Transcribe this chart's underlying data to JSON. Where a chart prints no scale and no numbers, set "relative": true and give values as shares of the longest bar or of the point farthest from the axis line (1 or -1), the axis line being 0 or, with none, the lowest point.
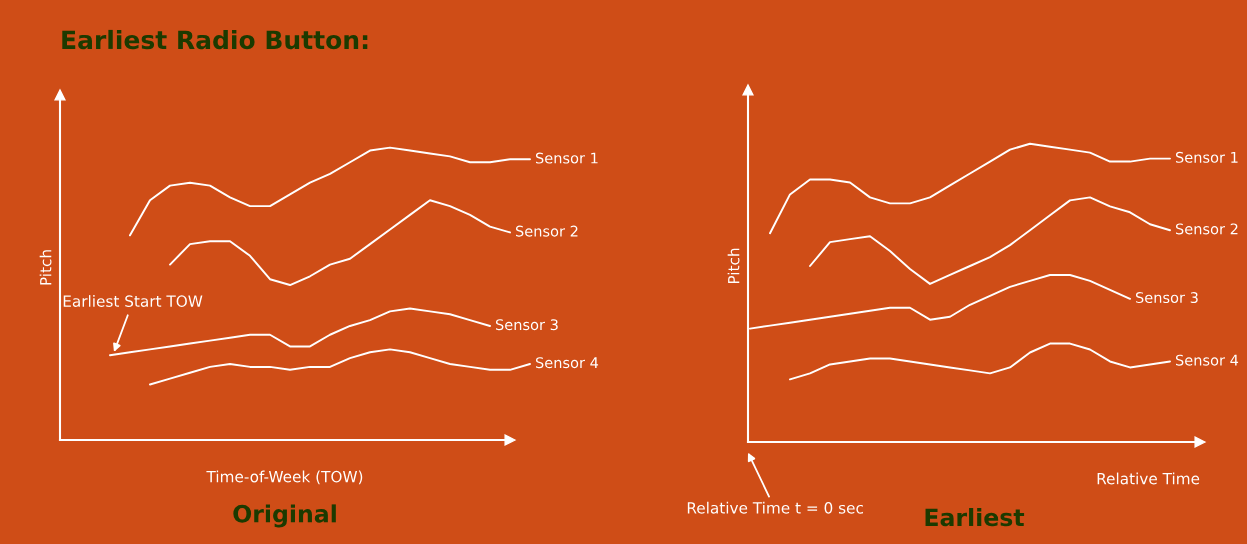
{
  "chart_data": [
    {
      "type": "line",
      "relative": true,
      "title": "Earliest Radio Button:",
      "xlabel": "Time-of-Week (TOW)",
      "ylabel": "Pitch",
      "annotations": [
        "Earliest Start TOW",
        "Original"
      ],
      "categories": [
        null,
        null,
        null,
        null,
        null,
        null,
        null,
        null,
        null,
        null,
        null,
        null,
        null,
        null,
        null,
        null,
        null,
        null,
        null,
        null,
        null,
        null
      ],
      "series": [
        {
          "name": "Sensor 1",
          "color": "#ffffff",
          "values": [
            null,
            0.7,
            0.82,
            0.87,
            0.88,
            0.87,
            0.83,
            0.8,
            0.8,
            0.84,
            0.88,
            0.91,
            0.95,
            0.99,
            1.0,
            0.99,
            0.98,
            0.97,
            0.95,
            0.95,
            0.96,
            0.96
          ]
        },
        {
          "name": "Sensor 2",
          "color": "#ffffff",
          "values": [
            null,
            null,
            null,
            0.6,
            0.67,
            0.68,
            0.68,
            0.63,
            0.55,
            0.53,
            0.56,
            0.6,
            0.62,
            0.67,
            0.72,
            0.77,
            0.82,
            0.8,
            0.77,
            0.73,
            0.71,
            null
          ]
        },
        {
          "name": "Sensor 3",
          "color": "#ffffff",
          "values": [
            0.29,
            0.3,
            0.31,
            0.32,
            0.33,
            0.34,
            0.35,
            0.36,
            0.36,
            0.32,
            0.32,
            0.36,
            0.39,
            0.41,
            0.44,
            0.45,
            0.44,
            0.43,
            0.41,
            0.39,
            null,
            null
          ]
        },
        {
          "name": "Sensor 4",
          "color": "#ffffff",
          "values": [
            null,
            null,
            0.19,
            0.21,
            0.23,
            0.25,
            0.26,
            0.25,
            0.25,
            0.24,
            0.25,
            0.25,
            0.28,
            0.3,
            0.31,
            0.3,
            0.28,
            0.26,
            0.25,
            0.24,
            0.24,
            0.26
          ]
        }
      ]
    },
    {
      "type": "line",
      "relative": true,
      "xlabel": "Relative Time",
      "ylabel": "Pitch",
      "annotations": [
        "Relative Time t = 0 sec",
        "Earliest"
      ],
      "categories": [
        null,
        null,
        null,
        null,
        null,
        null,
        null,
        null,
        null,
        null,
        null,
        null,
        null,
        null,
        null,
        null,
        null,
        null,
        null,
        null,
        null,
        null
      ],
      "series": [
        {
          "name": "Sensor 1",
          "color": "#ffffff",
          "values": [
            null,
            0.7,
            0.83,
            0.88,
            0.88,
            0.87,
            0.82,
            0.8,
            0.8,
            0.82,
            0.86,
            0.9,
            0.94,
            0.98,
            1.0,
            0.99,
            0.98,
            0.97,
            0.94,
            0.94,
            0.95,
            0.95
          ]
        },
        {
          "name": "Sensor 2",
          "color": "#ffffff",
          "values": [
            null,
            null,
            null,
            0.59,
            0.67,
            0.68,
            0.69,
            0.64,
            0.58,
            0.53,
            0.56,
            0.59,
            0.62,
            0.66,
            0.71,
            0.76,
            0.81,
            0.82,
            0.79,
            0.77,
            0.73,
            0.71
          ]
        },
        {
          "name": "Sensor 3",
          "color": "#ffffff",
          "values": [
            0.38,
            0.39,
            0.4,
            0.41,
            0.42,
            0.43,
            0.44,
            0.45,
            0.45,
            0.41,
            0.42,
            0.46,
            0.49,
            0.52,
            0.54,
            0.56,
            0.56,
            0.54,
            0.51,
            0.48,
            null,
            null
          ]
        },
        {
          "name": "Sensor 4",
          "color": "#ffffff",
          "values": [
            null,
            null,
            0.21,
            0.23,
            0.26,
            0.27,
            0.28,
            0.28,
            0.27,
            0.26,
            0.25,
            0.24,
            0.23,
            0.25,
            0.3,
            0.33,
            0.33,
            0.31,
            0.27,
            0.25,
            0.26,
            0.27
          ]
        }
      ]
    }
  ]
}
